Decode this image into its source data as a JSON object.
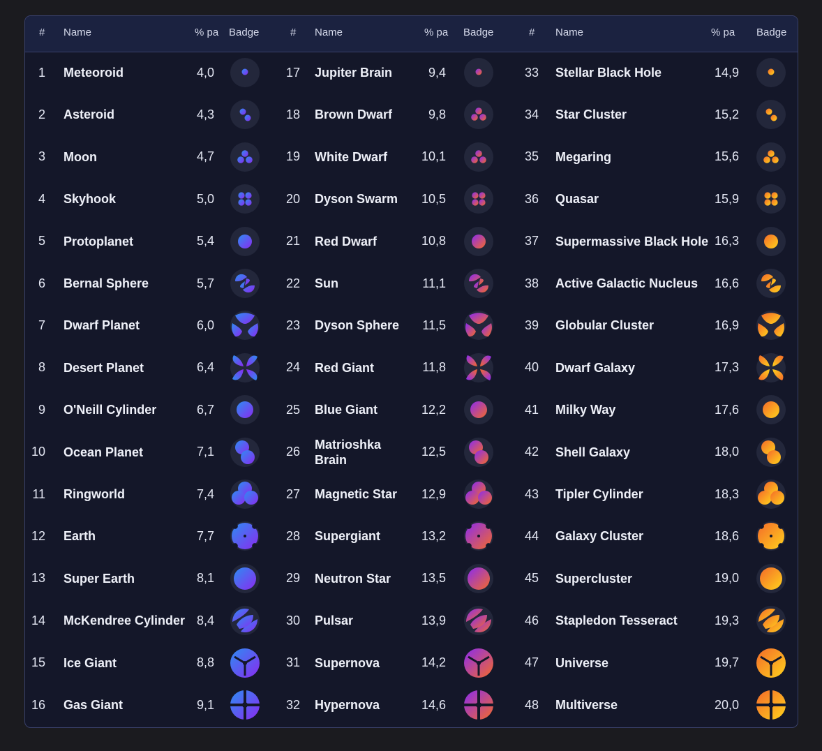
{
  "columns": {
    "num": "#",
    "name": "Name",
    "pct": "% pa",
    "badge": "Badge"
  },
  "colors": {
    "blue": "#2d8cf2",
    "purple": "#8a2bf0",
    "pink": "#ea2d8e",
    "red_orange": "#f46a2a",
    "orange": "#f78a10",
    "yellow": "#ffd21c",
    "panel_bg": "#141729",
    "header_bg": "#1b2240",
    "border": "#39406a"
  },
  "groups": [
    {
      "gradient": [
        "#2d8cf2",
        "#8a2bf0"
      ],
      "rows": [
        {
          "n": "1",
          "name": "Meteoroid",
          "pct": "4,0",
          "shape": "dot"
        },
        {
          "n": "2",
          "name": "Asteroid",
          "pct": "4,3",
          "shape": "dots2"
        },
        {
          "n": "3",
          "name": "Moon",
          "pct": "4,7",
          "shape": "dots3"
        },
        {
          "n": "4",
          "name": "Skyhook",
          "pct": "5,0",
          "shape": "dots4"
        },
        {
          "n": "5",
          "name": "Protoplanet",
          "pct": "5,4",
          "shape": "circle_md"
        },
        {
          "n": "6",
          "name": "Bernal Sphere",
          "pct": "5,7",
          "shape": "petals2"
        },
        {
          "n": "7",
          "name": "Dwarf Planet",
          "pct": "6,0",
          "shape": "petals3"
        },
        {
          "n": "8",
          "name": "Desert Planet",
          "pct": "6,4",
          "shape": "petals4"
        },
        {
          "n": "9",
          "name": "O'Neill Cylinder",
          "pct": "6,7",
          "shape": "circle_lg"
        },
        {
          "n": "10",
          "name": "Ocean Planet",
          "pct": "7,1",
          "shape": "blob2"
        },
        {
          "n": "11",
          "name": "Ringworld",
          "pct": "7,4",
          "shape": "blob3"
        },
        {
          "n": "12",
          "name": "Earth",
          "pct": "7,7",
          "shape": "flower"
        },
        {
          "n": "13",
          "name": "Super Earth",
          "pct": "8,1",
          "shape": "circle_xl"
        },
        {
          "n": "14",
          "name": "McKendree Cylinder",
          "pct": "8,4",
          "shape": "swirl2"
        },
        {
          "n": "15",
          "name": "Ice Giant",
          "pct": "8,8",
          "shape": "trefoil"
        },
        {
          "n": "16",
          "name": "Gas Giant",
          "pct": "9,1",
          "shape": "cross"
        }
      ]
    },
    {
      "gradient": [
        "#8a2bf0",
        "#f46a2a"
      ],
      "rows": [
        {
          "n": "17",
          "name": "Jupiter Brain",
          "pct": "9,4",
          "shape": "dot"
        },
        {
          "n": "18",
          "name": "Brown Dwarf",
          "pct": "9,8",
          "shape": "dots3"
        },
        {
          "n": "19",
          "name": "White Dwarf",
          "pct": "10,1",
          "shape": "dots3"
        },
        {
          "n": "20",
          "name": "Dyson Swarm",
          "pct": "10,5",
          "shape": "dots4"
        },
        {
          "n": "21",
          "name": "Red Dwarf",
          "pct": "10,8",
          "shape": "circle_md"
        },
        {
          "n": "22",
          "name": "Sun",
          "pct": "11,1",
          "shape": "petals2"
        },
        {
          "n": "23",
          "name": "Dyson Sphere",
          "pct": "11,5",
          "shape": "petals3"
        },
        {
          "n": "24",
          "name": "Red Giant",
          "pct": "11,8",
          "shape": "petals4"
        },
        {
          "n": "25",
          "name": "Blue Giant",
          "pct": "12,2",
          "shape": "circle_lg"
        },
        {
          "n": "26",
          "name": "Matrioshka Brain",
          "pct": "12,5",
          "shape": "blob2"
        },
        {
          "n": "27",
          "name": "Magnetic Star",
          "pct": "12,9",
          "shape": "blob3"
        },
        {
          "n": "28",
          "name": "Supergiant",
          "pct": "13,2",
          "shape": "flower"
        },
        {
          "n": "29",
          "name": "Neutron Star",
          "pct": "13,5",
          "shape": "circle_xl"
        },
        {
          "n": "30",
          "name": "Pulsar",
          "pct": "13,9",
          "shape": "swirl2"
        },
        {
          "n": "31",
          "name": "Supernova",
          "pct": "14,2",
          "shape": "trefoil"
        },
        {
          "n": "32",
          "name": "Hypernova",
          "pct": "14,6",
          "shape": "cross"
        }
      ]
    },
    {
      "gradient": [
        "#f46a2a",
        "#ffd21c"
      ],
      "rows": [
        {
          "n": "33",
          "name": "Stellar Black Hole",
          "pct": "14,9",
          "shape": "dot"
        },
        {
          "n": "34",
          "name": "Star Cluster",
          "pct": "15,2",
          "shape": "dots2"
        },
        {
          "n": "35",
          "name": "Megaring",
          "pct": "15,6",
          "shape": "dots3"
        },
        {
          "n": "36",
          "name": "Quasar",
          "pct": "15,9",
          "shape": "dots4"
        },
        {
          "n": "37",
          "name": "Supermassive Black Hole",
          "pct": "16,3",
          "shape": "circle_md"
        },
        {
          "n": "38",
          "name": "Active Galactic Nucleus",
          "pct": "16,6",
          "shape": "petals2"
        },
        {
          "n": "39",
          "name": "Globular Cluster",
          "pct": "16,9",
          "shape": "petals3"
        },
        {
          "n": "40",
          "name": "Dwarf Galaxy",
          "pct": "17,3",
          "shape": "petals4"
        },
        {
          "n": "41",
          "name": "Milky Way",
          "pct": "17,6",
          "shape": "circle_lg"
        },
        {
          "n": "42",
          "name": "Shell Galaxy",
          "pct": "18,0",
          "shape": "blob2"
        },
        {
          "n": "43",
          "name": "Tipler Cylinder",
          "pct": "18,3",
          "shape": "blob3"
        },
        {
          "n": "44",
          "name": "Galaxy Cluster",
          "pct": "18,6",
          "shape": "flower"
        },
        {
          "n": "45",
          "name": "Supercluster",
          "pct": "19,0",
          "shape": "circle_xl"
        },
        {
          "n": "46",
          "name": "Stapledon Tesseract",
          "pct": "19,3",
          "shape": "swirl2"
        },
        {
          "n": "47",
          "name": "Universe",
          "pct": "19,7",
          "shape": "trefoil"
        },
        {
          "n": "48",
          "name": "Multiverse",
          "pct": "20,0",
          "shape": "cross"
        }
      ]
    }
  ]
}
